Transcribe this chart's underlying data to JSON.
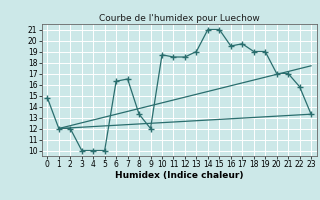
{
  "title": "Courbe de l'humidex pour Luechow",
  "xlabel": "Humidex (Indice chaleur)",
  "ylabel": "",
  "background_color": "#cce8e8",
  "line_color": "#2a6e6e",
  "grid_color": "#ffffff",
  "xlim": [
    -0.5,
    23.5
  ],
  "ylim": [
    9.5,
    21.5
  ],
  "xticks": [
    0,
    1,
    2,
    3,
    4,
    5,
    6,
    7,
    8,
    9,
    10,
    11,
    12,
    13,
    14,
    15,
    16,
    17,
    18,
    19,
    20,
    21,
    22,
    23
  ],
  "yticks": [
    10,
    11,
    12,
    13,
    14,
    15,
    16,
    17,
    18,
    19,
    20,
    21
  ],
  "line1_x": [
    0,
    1,
    2,
    3,
    4,
    5,
    6,
    7,
    8,
    9,
    10,
    11,
    12,
    13,
    14,
    15,
    16,
    17,
    18,
    19,
    20,
    21,
    22,
    23
  ],
  "line1_y": [
    14.8,
    12.0,
    12.0,
    10.0,
    10.0,
    10.0,
    16.3,
    16.5,
    13.3,
    12.0,
    18.7,
    18.5,
    18.5,
    19.0,
    21.0,
    21.0,
    19.5,
    19.7,
    19.0,
    19.0,
    17.0,
    17.0,
    15.8,
    13.3
  ],
  "line2_x": [
    1,
    23
  ],
  "line2_y": [
    12.0,
    13.3
  ],
  "line3_x": [
    1,
    23
  ],
  "line3_y": [
    12.0,
    17.7
  ],
  "marker": "+",
  "markersize": 4,
  "markeredgewidth": 1.0,
  "linewidth": 0.9,
  "tick_fontsize": 5.5,
  "xlabel_fontsize": 6.5,
  "title_fontsize": 6.5
}
